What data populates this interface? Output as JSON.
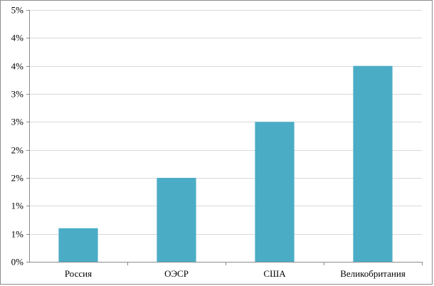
{
  "chart_data": {
    "type": "bar",
    "categories": [
      "Россия",
      "ОЭСР",
      "США",
      "Великобритания"
    ],
    "values": [
      0.6,
      1.5,
      2.5,
      3.5
    ],
    "y_tick_labels": [
      "0%",
      "1%",
      "1%",
      "2%",
      "2%",
      "3%",
      "3%",
      "4%",
      "4%",
      "5%"
    ],
    "y_tick_values": [
      0,
      0.5,
      1,
      1.5,
      2,
      2.5,
      3,
      3.5,
      4,
      4.5
    ],
    "ylim": [
      0,
      4.5
    ],
    "grid": true,
    "legend": "none",
    "colors": {
      "bar": "#4bacc6",
      "grid": "#d9d9d9",
      "axis": "#8c8c8c"
    }
  }
}
